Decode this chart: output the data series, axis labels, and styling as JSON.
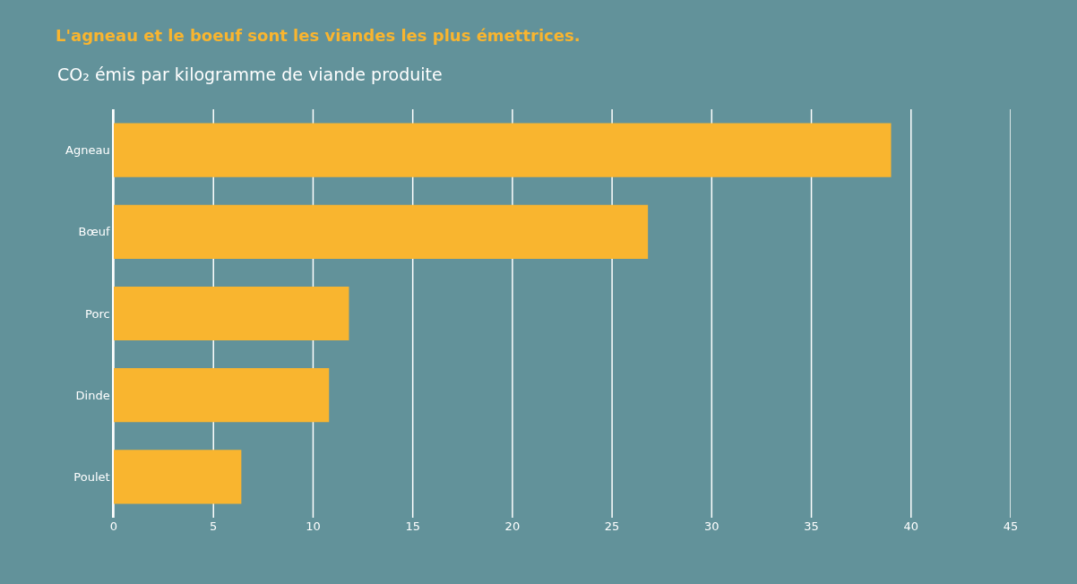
{
  "chart_data": {
    "type": "bar",
    "orientation": "horizontal",
    "title": "L'agneau et le boeuf sont les viandes les plus émettrices.",
    "subtitle": "CO₂ émis par kilogramme de viande produite",
    "categories": [
      "Agneau",
      "Bœuf",
      "Porc",
      "Dinde",
      "Poulet"
    ],
    "values": [
      39,
      26.8,
      11.8,
      10.8,
      6.4
    ],
    "color": "#f9b52f",
    "xlim": [
      0,
      45
    ],
    "xticks": [
      0,
      5,
      10,
      15,
      20,
      25,
      30,
      35,
      40,
      45
    ],
    "grid": "x"
  }
}
